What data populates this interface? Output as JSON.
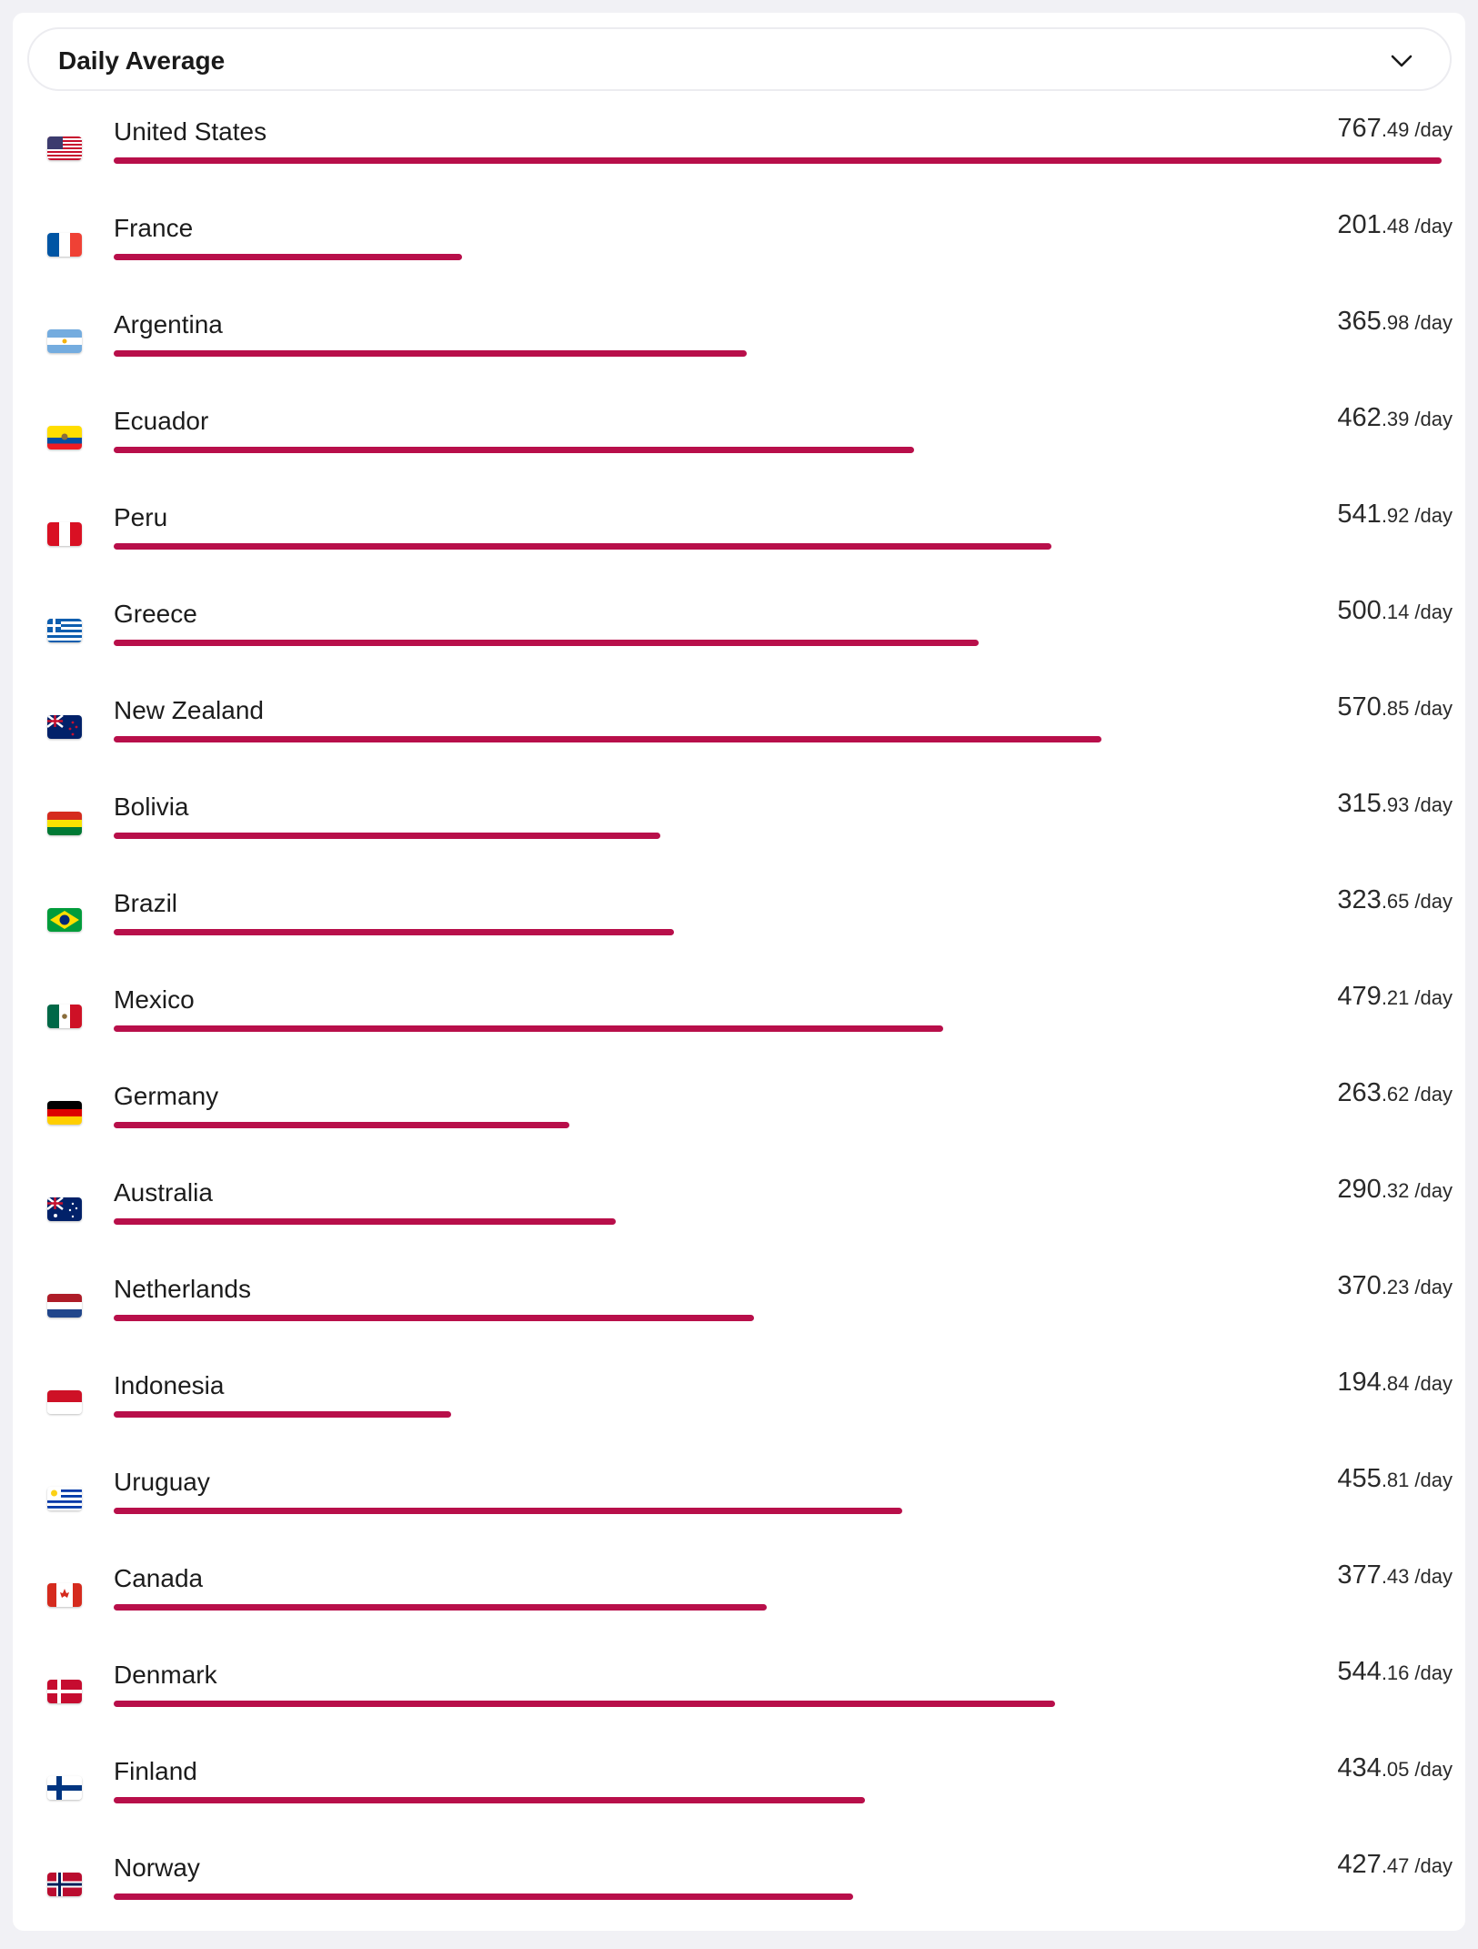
{
  "header": {
    "dropdown_label": "Daily Average",
    "dropdown_icon": "chevron-down-icon"
  },
  "colors": {
    "bar": "#b80f4a",
    "background": "#f1f1f5"
  },
  "unit_label": "/day",
  "max_value": 767.49,
  "rows": [
    {
      "country": "United States",
      "flag": "us-flag-icon",
      "int": "767",
      "dec": ".49",
      "value": 767.49
    },
    {
      "country": "France",
      "flag": "fr-flag-icon",
      "int": "201",
      "dec": ".48",
      "value": 201.48
    },
    {
      "country": "Argentina",
      "flag": "ar-flag-icon",
      "int": "365",
      "dec": ".98",
      "value": 365.98
    },
    {
      "country": "Ecuador",
      "flag": "ec-flag-icon",
      "int": "462",
      "dec": ".39",
      "value": 462.39
    },
    {
      "country": "Peru",
      "flag": "pe-flag-icon",
      "int": "541",
      "dec": ".92",
      "value": 541.92
    },
    {
      "country": "Greece",
      "flag": "gr-flag-icon",
      "int": "500",
      "dec": ".14",
      "value": 500.14
    },
    {
      "country": "New Zealand",
      "flag": "nz-flag-icon",
      "int": "570",
      "dec": ".85",
      "value": 570.85
    },
    {
      "country": "Bolivia",
      "flag": "bo-flag-icon",
      "int": "315",
      "dec": ".93",
      "value": 315.93
    },
    {
      "country": "Brazil",
      "flag": "br-flag-icon",
      "int": "323",
      "dec": ".65",
      "value": 323.65
    },
    {
      "country": "Mexico",
      "flag": "mx-flag-icon",
      "int": "479",
      "dec": ".21",
      "value": 479.21
    },
    {
      "country": "Germany",
      "flag": "de-flag-icon",
      "int": "263",
      "dec": ".62",
      "value": 263.62
    },
    {
      "country": "Australia",
      "flag": "au-flag-icon",
      "int": "290",
      "dec": ".32",
      "value": 290.32
    },
    {
      "country": "Netherlands",
      "flag": "nl-flag-icon",
      "int": "370",
      "dec": ".23",
      "value": 370.23
    },
    {
      "country": "Indonesia",
      "flag": "id-flag-icon",
      "int": "194",
      "dec": ".84",
      "value": 194.84
    },
    {
      "country": "Uruguay",
      "flag": "uy-flag-icon",
      "int": "455",
      "dec": ".81",
      "value": 455.81
    },
    {
      "country": "Canada",
      "flag": "ca-flag-icon",
      "int": "377",
      "dec": ".43",
      "value": 377.43
    },
    {
      "country": "Denmark",
      "flag": "dk-flag-icon",
      "int": "544",
      "dec": ".16",
      "value": 544.16
    },
    {
      "country": "Finland",
      "flag": "fi-flag-icon",
      "int": "434",
      "dec": ".05",
      "value": 434.05
    },
    {
      "country": "Norway",
      "flag": "no-flag-icon",
      "int": "427",
      "dec": ".47",
      "value": 427.47
    }
  ]
}
